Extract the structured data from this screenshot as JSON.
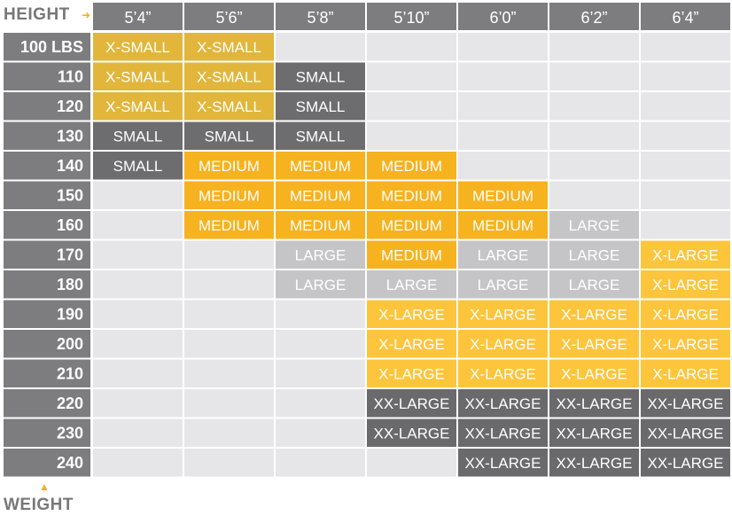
{
  "corner": {
    "height_label": "HEIGHT",
    "weight_label": "WEIGHT"
  },
  "colors": {
    "header_gray": "#7d7d7f",
    "empty_cell": "#e6e6e8",
    "XS": "#e1b63a",
    "S": "#6d6d6f",
    "M": "#f7b21f",
    "L": "#c5c5c7",
    "XL": "#fcc53c",
    "XXL": "#6a6a6c"
  },
  "chart_data": {
    "type": "table",
    "xlabel": "HEIGHT",
    "ylabel": "WEIGHT",
    "columns": [
      "5’4”",
      "5’6”",
      "5’8”",
      "5’10”",
      "6’0”",
      "6’2”",
      "6’4”"
    ],
    "rows": [
      "100 LBS",
      "110",
      "120",
      "130",
      "140",
      "150",
      "160",
      "170",
      "180",
      "190",
      "200",
      "210",
      "220",
      "230",
      "240"
    ],
    "sizes": {
      "XS": "X-SMALL",
      "S": "SMALL",
      "M": "MEDIUM",
      "L": "LARGE",
      "XL": "X-LARGE",
      "XXL": "XX-LARGE"
    },
    "cells": [
      [
        "XS",
        "XS",
        "",
        "",
        "",
        "",
        ""
      ],
      [
        "XS",
        "XS",
        "S",
        "",
        "",
        "",
        ""
      ],
      [
        "XS",
        "XS",
        "S",
        "",
        "",
        "",
        ""
      ],
      [
        "S",
        "S",
        "S",
        "",
        "",
        "",
        ""
      ],
      [
        "S",
        "M",
        "M",
        "M",
        "",
        "",
        ""
      ],
      [
        "",
        "M",
        "M",
        "M",
        "M",
        "",
        ""
      ],
      [
        "",
        "M",
        "M",
        "M",
        "M",
        "L",
        ""
      ],
      [
        "",
        "",
        "L",
        "M",
        "L",
        "L",
        "XL"
      ],
      [
        "",
        "",
        "L",
        "L",
        "L",
        "L",
        "XL"
      ],
      [
        "",
        "",
        "",
        "XL",
        "XL",
        "XL",
        "XL"
      ],
      [
        "",
        "",
        "",
        "XL",
        "XL",
        "XL",
        "XL"
      ],
      [
        "",
        "",
        "",
        "XL",
        "XL",
        "XL",
        "XL"
      ],
      [
        "",
        "",
        "",
        "XXL",
        "XXL",
        "XXL",
        "XXL"
      ],
      [
        "",
        "",
        "",
        "XXL",
        "XXL",
        "XXL",
        "XXL"
      ],
      [
        "",
        "",
        "",
        "",
        "XXL",
        "XXL",
        "XXL"
      ]
    ]
  }
}
